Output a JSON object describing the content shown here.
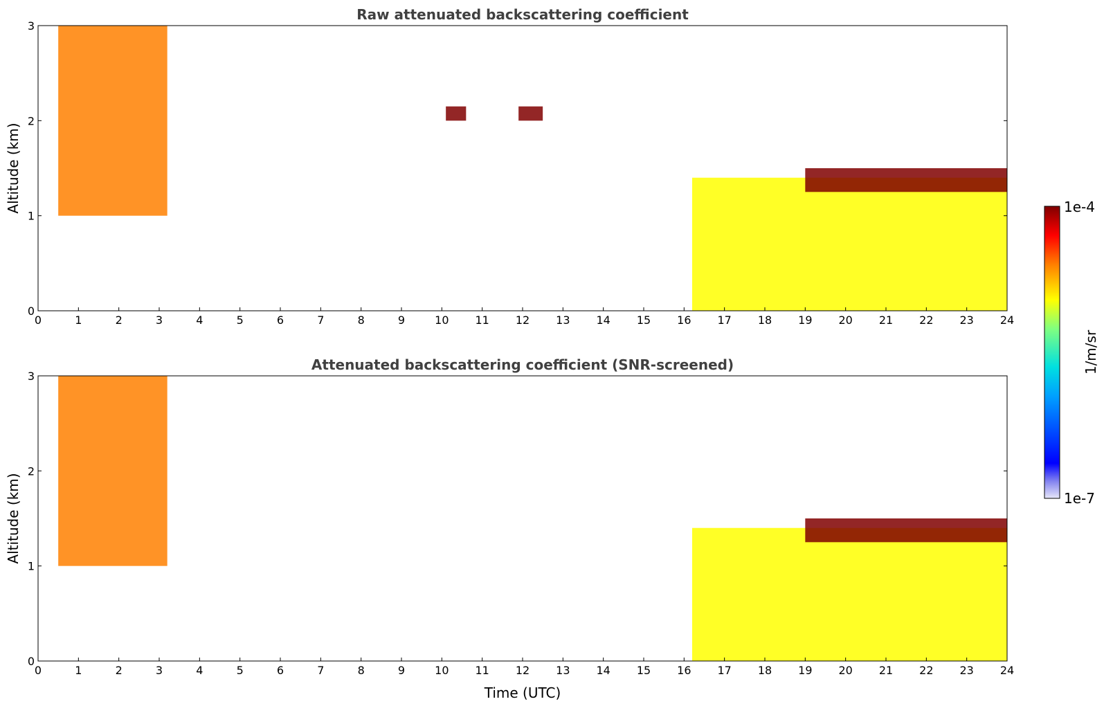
{
  "chart_data": [
    {
      "type": "heatmap",
      "title": "Raw attenuated backscattering coefficient",
      "xlabel": "",
      "ylabel": "Altitude (km)",
      "xlim": [
        0,
        24
      ],
      "ylim": [
        0,
        3
      ],
      "xticks": [
        "0",
        "1",
        "2",
        "3",
        "4",
        "5",
        "6",
        "7",
        "8",
        "9",
        "10",
        "11",
        "12",
        "13",
        "14",
        "15",
        "16",
        "17",
        "18",
        "19",
        "20",
        "21",
        "22",
        "23",
        "24"
      ],
      "yticks": [
        "0",
        "1",
        "2",
        "3"
      ],
      "features": [
        {
          "x": [
            0.5,
            3.2
          ],
          "y": [
            1.0,
            3.0
          ],
          "level": 0.8
        },
        {
          "x": [
            16.2,
            24
          ],
          "y": [
            0.0,
            1.4
          ],
          "level": 0.65
        },
        {
          "x": [
            19.0,
            24
          ],
          "y": [
            1.25,
            1.5
          ],
          "level": 1.0
        },
        {
          "x": [
            10.1,
            10.6
          ],
          "y": [
            2.0,
            2.15
          ],
          "level": 1.0
        },
        {
          "x": [
            11.9,
            12.5
          ],
          "y": [
            2.0,
            2.15
          ],
          "level": 1.0
        }
      ]
    },
    {
      "type": "heatmap",
      "title": "Attenuated backscattering coefficient (SNR-screened)",
      "xlabel": "Time (UTC)",
      "ylabel": "Altitude (km)",
      "xlim": [
        0,
        24
      ],
      "ylim": [
        0,
        3
      ],
      "xticks": [
        "0",
        "1",
        "2",
        "3",
        "4",
        "5",
        "6",
        "7",
        "8",
        "9",
        "10",
        "11",
        "12",
        "13",
        "14",
        "15",
        "16",
        "17",
        "18",
        "19",
        "20",
        "21",
        "22",
        "23",
        "24"
      ],
      "yticks": [
        "0",
        "1",
        "2",
        "3"
      ],
      "features": [
        {
          "x": [
            0.5,
            3.2
          ],
          "y": [
            1.0,
            3.0
          ],
          "level": 0.8
        },
        {
          "x": [
            16.2,
            24
          ],
          "y": [
            0.0,
            1.4
          ],
          "level": 0.65
        },
        {
          "x": [
            19.0,
            24
          ],
          "y": [
            1.25,
            1.5
          ],
          "level": 1.0
        }
      ]
    }
  ],
  "colorbar": {
    "label": "1/m/sr",
    "max_label": "1e-4",
    "min_label": "1e-7",
    "colormap": "jet",
    "scale": "log"
  }
}
